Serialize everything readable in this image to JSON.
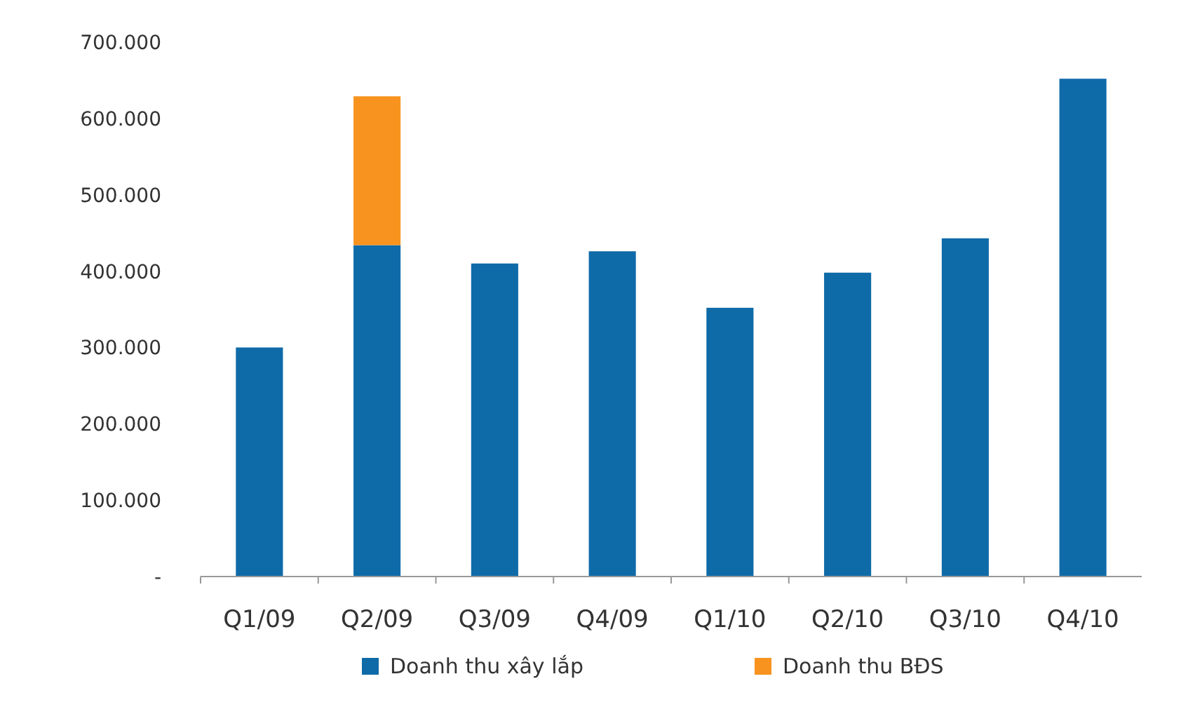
{
  "chart_data": {
    "type": "bar",
    "stacked": true,
    "categories": [
      "Q1/09",
      "Q2/09",
      "Q3/09",
      "Q4/09",
      "Q1/10",
      "Q2/10",
      "Q3/10",
      "Q4/10"
    ],
    "series": [
      {
        "name": "Doanh thu xây lắp",
        "color": "#0f6aa8",
        "values": [
          300,
          434,
          410,
          426,
          352,
          398,
          443,
          652
        ]
      },
      {
        "name": "Doanh thu BĐS",
        "color": "#f7931e",
        "values": [
          null,
          195,
          null,
          null,
          null,
          null,
          null,
          null
        ]
      }
    ],
    "ylim": [
      0,
      700
    ],
    "yticks": [
      {
        "value": 0,
        "label": "-"
      },
      {
        "value": 100,
        "label": "100.000"
      },
      {
        "value": 200,
        "label": "200.000"
      },
      {
        "value": 300,
        "label": "300.000"
      },
      {
        "value": 400,
        "label": "400.000"
      },
      {
        "value": 500,
        "label": "500.000"
      },
      {
        "value": 600,
        "label": "600.000"
      },
      {
        "value": 700,
        "label": "700.000"
      }
    ],
    "grid": false,
    "legend": "bottom"
  }
}
